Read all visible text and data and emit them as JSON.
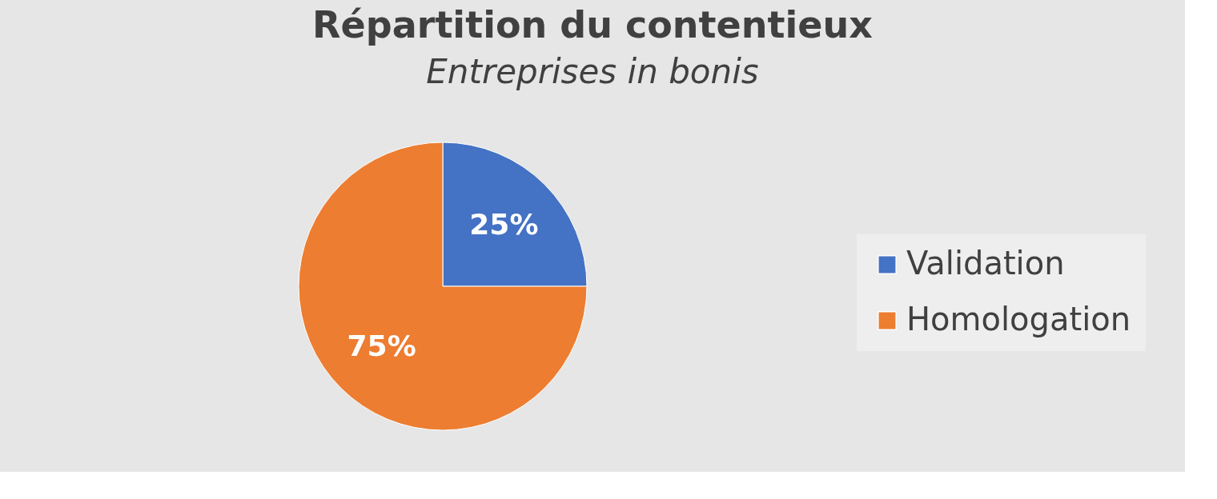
{
  "chart_data": {
    "type": "pie",
    "title": "Répartition du contentieux",
    "subtitle": "Entreprises in bonis",
    "categories": [
      "Validation",
      "Homologation"
    ],
    "values": [
      25,
      75
    ],
    "colors": [
      "#4472c4",
      "#ed7d31"
    ],
    "value_labels": [
      "25%",
      "75%"
    ],
    "legend": "right"
  }
}
